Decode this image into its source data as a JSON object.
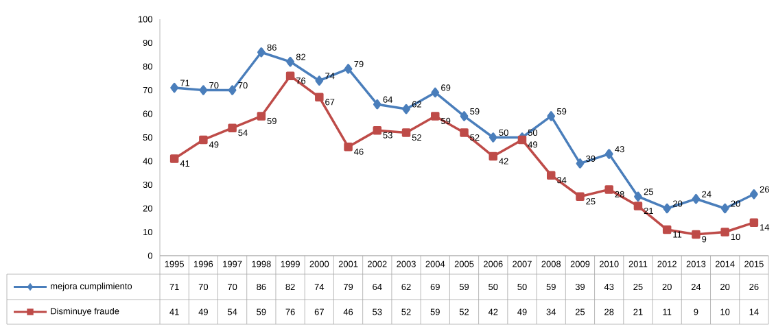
{
  "chart_data": {
    "type": "line",
    "categories": [
      "1995",
      "1996",
      "1997",
      "1998",
      "1999",
      "2000",
      "2001",
      "2002",
      "2003",
      "2004",
      "2005",
      "2006",
      "2007",
      "2008",
      "2009",
      "2010",
      "2011",
      "2012",
      "2013",
      "2014",
      "2015"
    ],
    "series": [
      {
        "name": "mejora cumplimiento",
        "color": "#4a7ebb",
        "marker": "diamond",
        "values": [
          71,
          70,
          70,
          86,
          82,
          74,
          79,
          64,
          62,
          69,
          59,
          50,
          50,
          59,
          39,
          43,
          25,
          20,
          24,
          20,
          26
        ]
      },
      {
        "name": "Disminuye fraude",
        "color": "#be4b48",
        "marker": "square",
        "values": [
          41,
          49,
          54,
          59,
          76,
          67,
          46,
          53,
          52,
          59,
          52,
          42,
          49,
          34,
          25,
          28,
          21,
          11,
          9,
          10,
          14
        ]
      }
    ],
    "annotations": [
      {
        "text": "71",
        "x": "1995",
        "y": 71
      },
      {
        "text": "70",
        "x": "1996",
        "y": 70
      },
      {
        "text": "70",
        "x": "1997",
        "y": 70
      },
      {
        "text": "86",
        "x": "1998",
        "y": 86
      },
      {
        "text": "82",
        "x": "1999",
        "y": 82
      },
      {
        "text": "74",
        "x": "2000",
        "y": 74
      },
      {
        "text": "79",
        "x": "2001",
        "y": 79
      },
      {
        "text": "64",
        "x": "2002",
        "y": 64
      },
      {
        "text": "62",
        "x": "2003",
        "y": 62
      },
      {
        "text": "69",
        "x": "2004",
        "y": 69
      },
      {
        "text": "59",
        "x": "2005",
        "y": 59
      },
      {
        "text": "50",
        "x": "2006",
        "y": 50
      },
      {
        "text": "50",
        "x": "2007",
        "y": 50
      },
      {
        "text": "59",
        "x": "2008",
        "y": 59
      },
      {
        "text": "39",
        "x": "2009",
        "y": 39
      },
      {
        "text": "43",
        "x": "2010",
        "y": 43
      },
      {
        "text": "25",
        "x": "2011",
        "y": 25
      },
      {
        "text": "20",
        "x": "2012",
        "y": 20
      },
      {
        "text": "24",
        "x": "2013",
        "y": 24
      },
      {
        "text": "20",
        "x": "2014",
        "y": 20
      },
      {
        "text": "26",
        "x": "2015",
        "y": 26
      },
      {
        "text": "41",
        "x": "1995",
        "y": 41
      },
      {
        "text": "49",
        "x": "1996",
        "y": 49
      },
      {
        "text": "54",
        "x": "1997",
        "y": 54
      },
      {
        "text": "59",
        "x": "1998",
        "y": 59
      },
      {
        "text": "76",
        "x": "1999",
        "y": 76
      },
      {
        "text": "67",
        "x": "2000",
        "y": 67
      },
      {
        "text": "46",
        "x": "2001",
        "y": 46
      },
      {
        "text": "53",
        "x": "2002",
        "y": 53
      },
      {
        "text": "52",
        "x": "2003",
        "y": 52
      },
      {
        "text": "59",
        "x": "2004",
        "y": 59
      },
      {
        "text": "52",
        "x": "2005",
        "y": 52
      },
      {
        "text": "42",
        "x": "2006",
        "y": 42
      },
      {
        "text": "49",
        "x": "2007",
        "y": 49
      },
      {
        "text": "34",
        "x": "2008",
        "y": 34
      },
      {
        "text": "25",
        "x": "2009",
        "y": 25
      },
      {
        "text": "28",
        "x": "2010",
        "y": 28
      },
      {
        "text": "21",
        "x": "2011",
        "y": 21
      },
      {
        "text": "11",
        "x": "2012",
        "y": 11
      },
      {
        "text": "9",
        "x": "2013",
        "y": 9
      },
      {
        "text": "10",
        "x": "2014",
        "y": 10
      },
      {
        "text": "14",
        "x": "2015",
        "y": 14
      }
    ],
    "ylim": [
      0,
      100
    ],
    "yticks": [
      0,
      10,
      20,
      30,
      40,
      50,
      60,
      70,
      80,
      90,
      100
    ],
    "line_style": "solid",
    "legend": "bottom",
    "data_labels": true
  }
}
